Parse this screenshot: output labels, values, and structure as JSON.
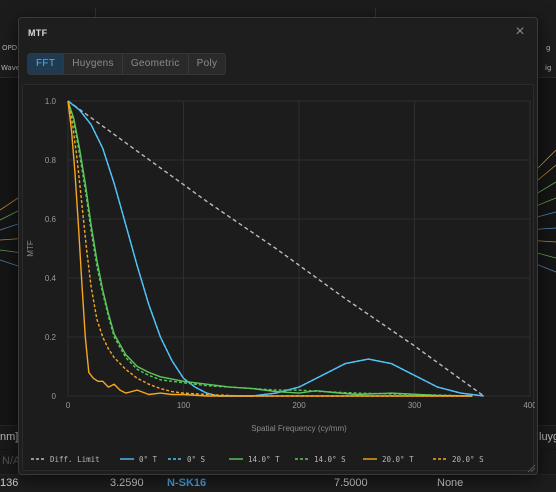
{
  "background": {
    "toolbar_left_labels": [
      "OPD",
      "Wave"
    ],
    "toolbar_right_labels": [
      "g",
      "ig"
    ],
    "header_left": "nm]",
    "placeholder_left": "N/A",
    "bottom_row": {
      "index": "136",
      "value": "3.2590",
      "material": "N-SK16",
      "value2": "7.5000",
      "coating": "None"
    },
    "right_edge_label": "luyg"
  },
  "dialog": {
    "title": "MTF",
    "close_glyph": "×",
    "tabs": [
      {
        "label": "FFT",
        "active": true
      },
      {
        "label": "Huygens",
        "active": false
      },
      {
        "label": "Geometric",
        "active": false
      },
      {
        "label": "Poly",
        "active": false
      }
    ]
  },
  "chart_data": {
    "type": "line",
    "title": "",
    "xlabel": "Spatial Frequency (cy/mm)",
    "ylabel": "MTF",
    "xlim": [
      0,
      400
    ],
    "ylim": [
      0,
      1.0
    ],
    "xticks": [
      "0",
      "100",
      "200",
      "300",
      "400"
    ],
    "yticks": [
      "0",
      "0.2",
      "0.4",
      "0.6",
      "0.8",
      "1.0"
    ],
    "grid": true,
    "legend_position": "bottom",
    "series": [
      {
        "name": "Diff. Limit",
        "color": "#bbbbbb",
        "dash": "dashed",
        "x": [
          0,
          60,
          120,
          180,
          240,
          300,
          360
        ],
        "y": [
          1.0,
          0.83,
          0.66,
          0.5,
          0.33,
          0.17,
          0.0
        ]
      },
      {
        "name": "0° T",
        "color": "#4fc3f7",
        "dash": "solid",
        "x": [
          0,
          10,
          20,
          30,
          40,
          50,
          60,
          70,
          80,
          90,
          100,
          110,
          120,
          130,
          140,
          160,
          180,
          200,
          220,
          240,
          260,
          280,
          300,
          320,
          340,
          360
        ],
        "y": [
          1.0,
          0.97,
          0.92,
          0.84,
          0.72,
          0.58,
          0.44,
          0.31,
          0.2,
          0.12,
          0.06,
          0.03,
          0.01,
          0.0,
          0.0,
          0.0,
          0.01,
          0.03,
          0.07,
          0.11,
          0.125,
          0.11,
          0.07,
          0.03,
          0.01,
          0.0
        ]
      },
      {
        "name": "0° S",
        "color": "#4fc3f7",
        "dash": "dashed",
        "x": [
          0,
          10,
          20,
          30,
          40,
          50,
          60,
          70,
          80,
          90,
          100,
          110,
          120,
          130,
          140,
          160,
          180,
          200,
          220,
          240,
          260,
          280,
          300,
          320,
          340,
          360
        ],
        "y": [
          1.0,
          0.97,
          0.92,
          0.84,
          0.72,
          0.58,
          0.44,
          0.31,
          0.2,
          0.12,
          0.06,
          0.03,
          0.01,
          0.0,
          0.0,
          0.0,
          0.01,
          0.03,
          0.07,
          0.11,
          0.125,
          0.11,
          0.07,
          0.03,
          0.01,
          0.0
        ]
      },
      {
        "name": "14.0° T",
        "color": "#5cc85c",
        "dash": "solid",
        "x": [
          0,
          5,
          10,
          15,
          20,
          25,
          30,
          35,
          40,
          50,
          60,
          70,
          80,
          100,
          120,
          140,
          160,
          180,
          200,
          215,
          230,
          250,
          280,
          320,
          350
        ],
        "y": [
          1.0,
          0.94,
          0.84,
          0.72,
          0.58,
          0.46,
          0.36,
          0.28,
          0.21,
          0.14,
          0.1,
          0.08,
          0.065,
          0.05,
          0.04,
          0.03,
          0.025,
          0.015,
          0.01,
          0.018,
          0.012,
          0.005,
          0.01,
          0.002,
          0.0
        ]
      },
      {
        "name": "14.0° S",
        "color": "#5cc85c",
        "dash": "dashed",
        "x": [
          0,
          5,
          10,
          15,
          20,
          25,
          30,
          35,
          40,
          50,
          60,
          70,
          80,
          100,
          120,
          140,
          160,
          180,
          200,
          220,
          250,
          300,
          350
        ],
        "y": [
          1.0,
          0.93,
          0.82,
          0.7,
          0.56,
          0.44,
          0.35,
          0.27,
          0.2,
          0.13,
          0.09,
          0.07,
          0.055,
          0.045,
          0.035,
          0.03,
          0.025,
          0.02,
          0.02,
          0.015,
          0.01,
          0.005,
          0.0
        ]
      },
      {
        "name": "20.0° T",
        "color": "#f5a623",
        "dash": "solid",
        "x": [
          0,
          3,
          6,
          9,
          12,
          15,
          18,
          22,
          26,
          30,
          35,
          40,
          45,
          50,
          60,
          70,
          80,
          90,
          100,
          120,
          150,
          200,
          250,
          300,
          350
        ],
        "y": [
          1.0,
          0.9,
          0.76,
          0.58,
          0.38,
          0.2,
          0.08,
          0.06,
          0.05,
          0.05,
          0.03,
          0.04,
          0.02,
          0.01,
          0.02,
          0.005,
          0.01,
          0.005,
          0.005,
          0.0,
          0.0,
          0.0,
          0.0,
          0.0,
          0.0
        ]
      },
      {
        "name": "20.0° S",
        "color": "#f5a623",
        "dash": "dashed",
        "x": [
          0,
          4,
          8,
          12,
          16,
          20,
          25,
          30,
          35,
          40,
          50,
          60,
          70,
          80,
          90,
          100,
          120,
          150,
          200,
          250,
          300,
          350
        ],
        "y": [
          1.0,
          0.92,
          0.8,
          0.65,
          0.5,
          0.37,
          0.26,
          0.2,
          0.16,
          0.13,
          0.09,
          0.06,
          0.04,
          0.025,
          0.015,
          0.01,
          0.005,
          0.0,
          0.0,
          0.0,
          0.0,
          0.0
        ]
      }
    ]
  }
}
